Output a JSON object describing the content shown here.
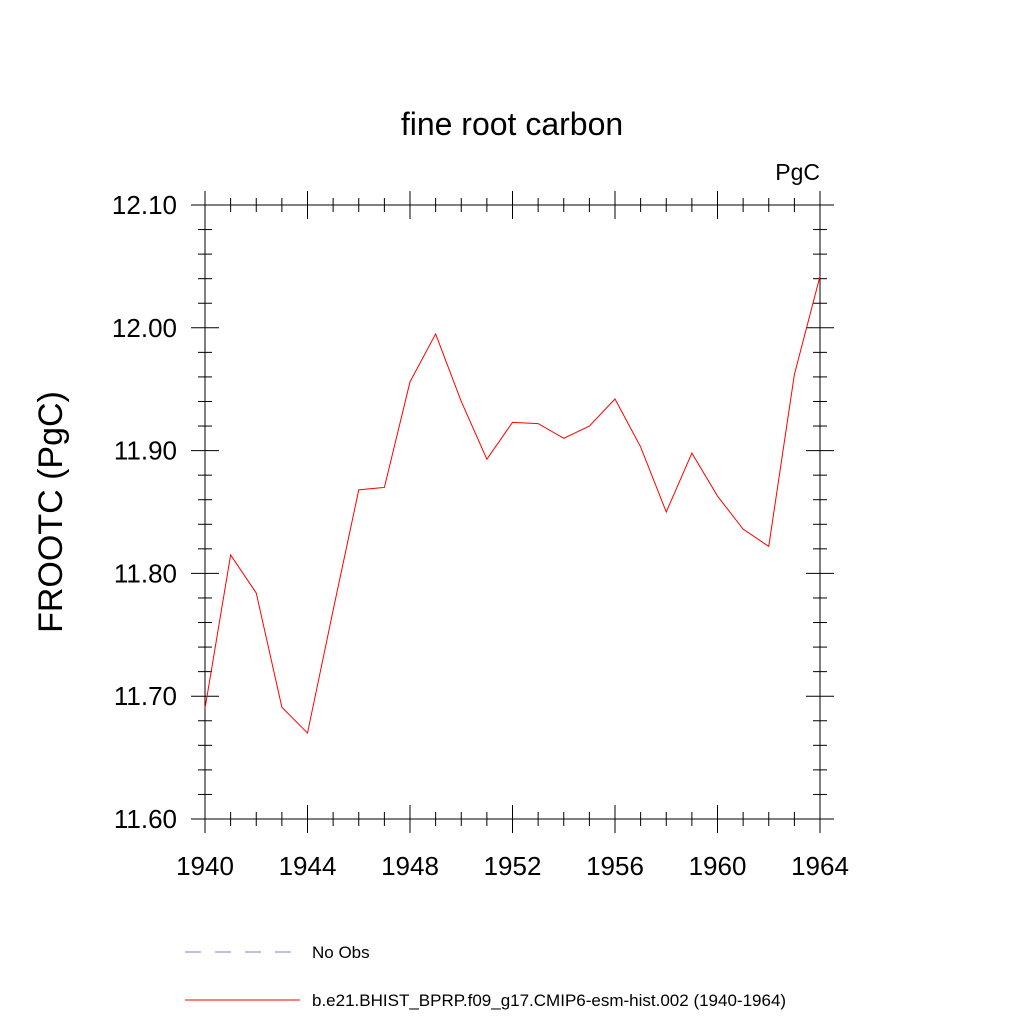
{
  "chart_data": {
    "type": "line",
    "title": "fine root carbon",
    "units": "PgC",
    "ylabel": "FROOTC  (PgC)",
    "xlabel": "",
    "xlim": [
      1940,
      1964
    ],
    "ylim": [
      11.6,
      12.1
    ],
    "x_ticks": [
      1940,
      1944,
      1948,
      1952,
      1956,
      1960,
      1964
    ],
    "x_tick_labels": [
      "1940",
      "1944",
      "1948",
      "1952",
      "1956",
      "1960",
      "1964"
    ],
    "y_ticks": [
      11.6,
      11.7,
      11.8,
      11.9,
      12.0,
      12.1
    ],
    "y_tick_labels": [
      "11.60",
      "11.70",
      "11.80",
      "11.90",
      "12.00",
      "12.10"
    ],
    "grid": false,
    "legend_position": "bottom",
    "legend": [
      {
        "label": "No Obs",
        "style": "dashed",
        "color": "#8080c0"
      },
      {
        "label": "b.e21.BHIST_BPRP.f09_g17.CMIP6-esm-hist.002 (1940-1964)",
        "style": "solid",
        "color": "#ff0000"
      }
    ],
    "series": [
      {
        "name": "b.e21.BHIST_BPRP.f09_g17.CMIP6-esm-hist.002 (1940-1964)",
        "color": "#ff0000",
        "x": [
          1940,
          1941,
          1942,
          1943,
          1944,
          1945,
          1946,
          1947,
          1948,
          1949,
          1950,
          1951,
          1952,
          1953,
          1954,
          1955,
          1956,
          1957,
          1958,
          1959,
          1960,
          1961,
          1962,
          1963,
          1964
        ],
        "y": [
          11.69,
          11.815,
          11.784,
          11.691,
          11.67,
          11.77,
          11.868,
          11.87,
          11.956,
          11.995,
          11.94,
          11.893,
          11.923,
          11.922,
          11.91,
          11.92,
          11.942,
          11.903,
          11.85,
          11.898,
          11.863,
          11.836,
          11.822,
          11.962,
          12.042
        ]
      }
    ]
  }
}
